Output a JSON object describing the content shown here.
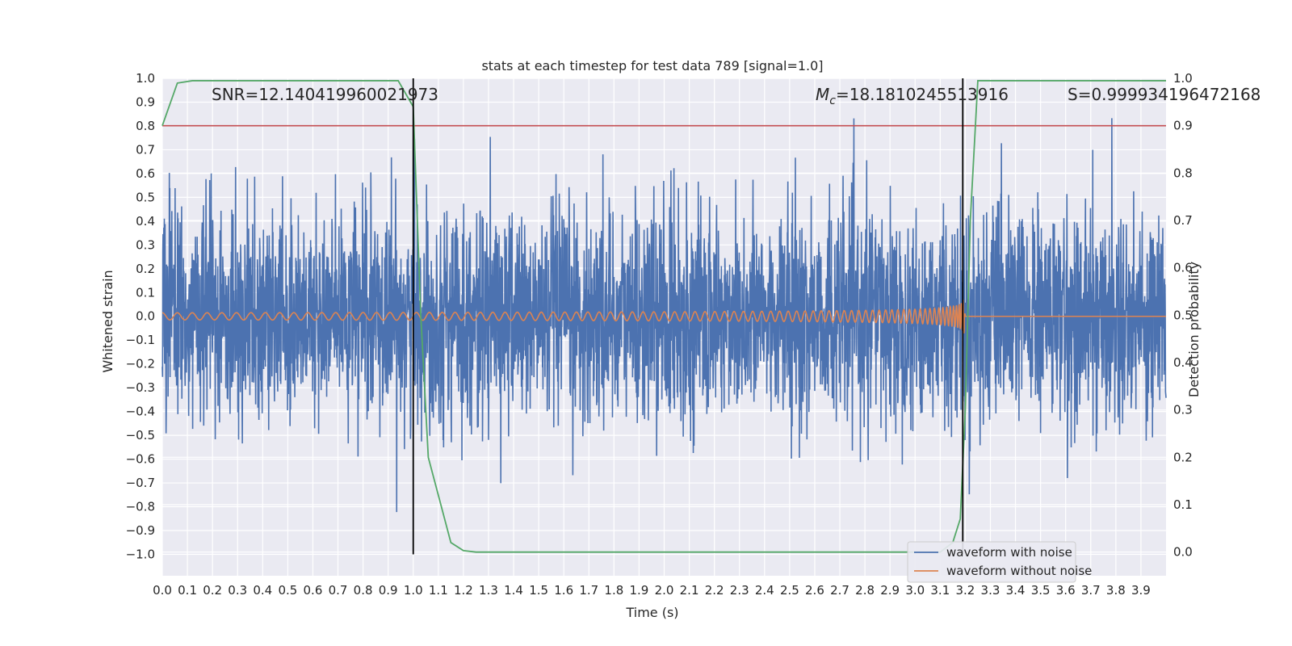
{
  "chart_data": {
    "type": "line",
    "title": "stats at each timestep for test data 789 [signal=1.0]",
    "xlabel": "Time (s)",
    "ylabel": "Whitened strain",
    "ylabel_right": "Detection probability",
    "xlim": [
      0.0,
      4.0
    ],
    "ylim": [
      -1.09,
      1.0
    ],
    "ylim_right": [
      -0.05,
      1.0
    ],
    "xticks": [
      "0.0",
      "0.1",
      "0.2",
      "0.3",
      "0.4",
      "0.5",
      "0.6",
      "0.7",
      "0.8",
      "0.9",
      "1.0",
      "1.1",
      "1.2",
      "1.3",
      "1.4",
      "1.5",
      "1.6",
      "1.7",
      "1.8",
      "1.9",
      "2.0",
      "2.1",
      "2.2",
      "2.3",
      "2.4",
      "2.5",
      "2.6",
      "2.7",
      "2.8",
      "2.9",
      "3.0",
      "3.1",
      "3.2",
      "3.3",
      "3.4",
      "3.5",
      "3.6",
      "3.7",
      "3.8",
      "3.9"
    ],
    "yticks": [
      "1.0",
      "0.9",
      "0.8",
      "0.7",
      "0.6",
      "0.5",
      "0.4",
      "0.3",
      "0.2",
      "0.1",
      "0.0",
      "−0.1",
      "−0.2",
      "−0.3",
      "−0.4",
      "−0.5",
      "−0.6",
      "−0.7",
      "−0.8",
      "−0.9",
      "−1.0"
    ],
    "yticks_right": [
      "1.0",
      "0.9",
      "0.8",
      "0.7",
      "0.6",
      "0.5",
      "0.4",
      "0.3",
      "0.2",
      "0.1",
      "0.0"
    ],
    "grid": true,
    "annotations": {
      "snr": "SNR=12.140419960021973",
      "mc_symbol": "M",
      "mc_sub": "c",
      "mc_value": "=18.1810245513916",
      "s": "S=0.999934196472168"
    },
    "vertical_lines_x": [
      1.0,
      3.19
    ],
    "threshold_right": 0.9,
    "merger_time": 3.2,
    "series": [
      {
        "name": "waveform with noise",
        "color": "#4c72b0",
        "noise_std": 0.22,
        "max_abs": 0.9
      },
      {
        "name": "waveform without noise",
        "color": "#dd8452"
      },
      {
        "name": "detection probability",
        "color": "#55a868",
        "axis": "right",
        "x": [
          0.0,
          0.06,
          0.12,
          0.2,
          0.5,
          0.94,
          1.0,
          1.03,
          1.06,
          1.1,
          1.15,
          1.2,
          1.25,
          1.5,
          2.0,
          2.5,
          3.0,
          3.1,
          3.15,
          3.18,
          3.2,
          3.22,
          3.25,
          3.5,
          4.0
        ],
        "y": [
          0.9,
          0.99,
          0.995,
          0.995,
          0.995,
          0.995,
          0.94,
          0.5,
          0.2,
          0.12,
          0.02,
          0.003,
          0.0,
          0.0,
          0.0,
          0.0,
          0.0,
          0.0,
          0.02,
          0.07,
          0.3,
          0.7,
          0.995,
          0.995,
          0.995
        ]
      },
      {
        "name": "threshold",
        "color": "#c44e52",
        "axis": "right"
      }
    ],
    "legend": {
      "position": "lower-right",
      "entries": [
        "waveform with noise",
        "waveform without noise"
      ]
    }
  }
}
